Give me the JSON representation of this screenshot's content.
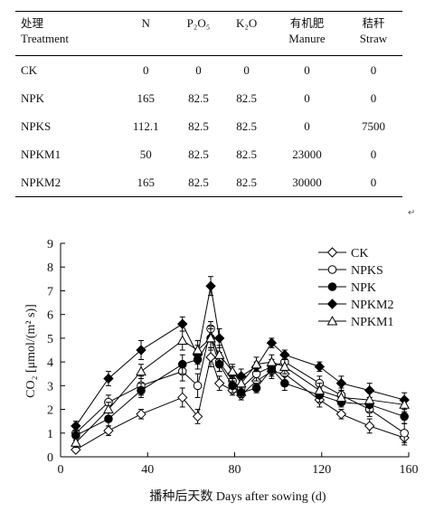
{
  "table": {
    "headers": [
      {
        "cn": "处理",
        "en": "Treatment"
      },
      {
        "cn": "",
        "en": "N"
      },
      {
        "cn": "",
        "en": "P₂O₅"
      },
      {
        "cn": "",
        "en": "K₂O"
      },
      {
        "cn": "有机肥",
        "en": "Manure"
      },
      {
        "cn": "秸秆",
        "en": "Straw"
      }
    ],
    "rows": [
      [
        "CK",
        "0",
        "0",
        "0",
        "0",
        "0"
      ],
      [
        "NPK",
        "165",
        "82.5",
        "82.5",
        "0",
        "0"
      ],
      [
        "NPKS",
        "112.1",
        "82.5",
        "82.5",
        "0",
        "7500"
      ],
      [
        "NPKM1",
        "50",
        "82.5",
        "82.5",
        "23000",
        "0"
      ],
      [
        "NPKM2",
        "165",
        "82.5",
        "82.5",
        "30000",
        "0"
      ]
    ],
    "para_mark": "↵"
  },
  "chart_data": {
    "type": "line",
    "xlabel": "播种后天数 Days after sowing (d)",
    "ylabel": "CO₂ [μmol/(m² s)]",
    "xlim": [
      0,
      160
    ],
    "ylim": [
      0,
      9
    ],
    "xticks": [
      0,
      40,
      80,
      120,
      160
    ],
    "yticks": [
      0,
      1,
      2,
      3,
      4,
      5,
      6,
      7,
      8,
      9
    ],
    "grid": false,
    "legend_position": "top-right",
    "x": [
      7,
      22,
      37,
      56,
      63,
      69,
      73,
      79,
      83,
      90,
      97,
      103,
      119,
      129,
      142,
      158
    ],
    "series": [
      {
        "name": "CK",
        "marker": "diamond-open",
        "values": [
          0.3,
          1.1,
          1.8,
          2.5,
          1.7,
          4.2,
          3.1,
          2.8,
          2.6,
          3.2,
          3.6,
          3.5,
          2.4,
          1.8,
          1.3,
          0.8
        ],
        "errors": [
          0.1,
          0.2,
          0.2,
          0.4,
          0.3,
          0.4,
          0.3,
          0.2,
          0.2,
          0.3,
          0.3,
          0.3,
          0.3,
          0.2,
          0.3,
          0.3
        ]
      },
      {
        "name": "NPKS",
        "marker": "circle-open",
        "values": [
          1.0,
          2.3,
          3.0,
          3.6,
          3.0,
          5.4,
          4.0,
          3.2,
          2.9,
          3.5,
          3.8,
          4.0,
          3.1,
          2.6,
          2.0,
          1.0
        ],
        "errors": [
          0.2,
          0.3,
          0.4,
          0.4,
          0.5,
          0.3,
          0.4,
          0.3,
          0.2,
          0.3,
          0.3,
          0.3,
          0.3,
          0.3,
          0.3,
          0.4
        ]
      },
      {
        "name": "NPK",
        "marker": "circle-filled",
        "values": [
          0.9,
          1.6,
          2.8,
          3.9,
          4.1,
          5.0,
          3.9,
          3.0,
          2.7,
          2.9,
          3.7,
          3.1,
          2.6,
          2.3,
          2.2,
          1.7
        ],
        "errors": [
          0.2,
          0.3,
          0.3,
          0.4,
          0.4,
          0.4,
          0.3,
          0.3,
          0.2,
          0.2,
          0.3,
          0.3,
          0.3,
          0.2,
          0.3,
          0.3
        ]
      },
      {
        "name": "NPKM2",
        "marker": "diamond-filled",
        "values": [
          1.3,
          3.3,
          4.5,
          5.6,
          4.3,
          7.2,
          5.0,
          3.5,
          3.4,
          3.8,
          4.8,
          4.3,
          3.8,
          3.1,
          2.8,
          2.4
        ],
        "errors": [
          0.2,
          0.3,
          0.4,
          0.3,
          0.4,
          0.4,
          0.4,
          0.3,
          0.3,
          0.2,
          0.2,
          0.2,
          0.2,
          0.3,
          0.3,
          0.3
        ]
      },
      {
        "name": "NPKM1",
        "marker": "triangle-open",
        "values": [
          0.6,
          2.0,
          3.6,
          4.9,
          4.5,
          5.0,
          4.3,
          3.6,
          3.1,
          3.9,
          4.0,
          3.8,
          2.8,
          2.5,
          2.4,
          2.2
        ],
        "errors": [
          0.2,
          0.3,
          0.3,
          0.4,
          0.4,
          0.5,
          0.4,
          0.3,
          0.3,
          0.3,
          0.3,
          0.3,
          0.3,
          0.3,
          0.3,
          0.3
        ]
      }
    ]
  }
}
